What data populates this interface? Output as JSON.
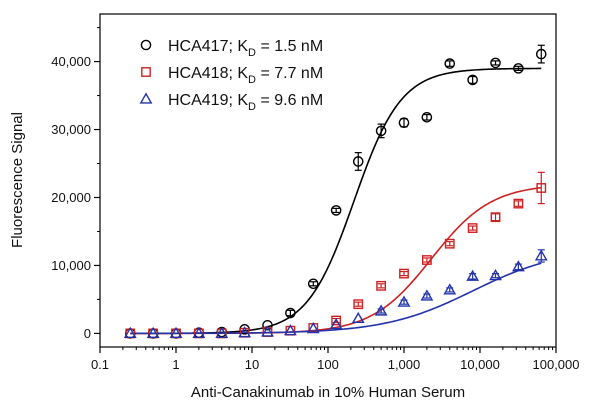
{
  "chart_data": {
    "type": "scatter",
    "title": "",
    "xlabel": "Anti-Canakinumab in 10% Human Serum",
    "ylabel": "Fluorescence Signal",
    "x_scale": "log",
    "xlim": [
      0.1,
      100000
    ],
    "ylim": [
      -2000,
      47000
    ],
    "x_ticks": [
      0.1,
      1,
      10,
      100,
      1000,
      10000,
      100000
    ],
    "x_tick_labels": [
      "0.1",
      "1",
      "10",
      "100",
      "1,000",
      "10,000",
      "100,000"
    ],
    "y_ticks": [
      0,
      10000,
      20000,
      30000,
      40000
    ],
    "y_tick_labels": [
      "0",
      "10,000",
      "20,000",
      "30,000",
      "40,000"
    ],
    "grid": false,
    "legend_position": "top-left",
    "series": [
      {
        "legend_main": "HCA417; K",
        "legend_sub": "D",
        "legend_tail": " = 1.5 nM",
        "marker": "circle",
        "color": "#000000",
        "x": [
          0.25,
          0.5,
          1,
          2,
          4,
          8,
          16,
          32,
          64,
          128,
          250,
          500,
          1000,
          2000,
          4000,
          8000,
          16000,
          32000,
          64000
        ],
        "y": [
          0,
          0,
          0,
          100,
          200,
          600,
          1200,
          3000,
          7300,
          18100,
          25300,
          29800,
          31000,
          31800,
          39700,
          37300,
          39800,
          39000,
          41100
        ],
        "err": [
          0,
          0,
          0,
          0,
          0,
          0,
          0,
          400,
          300,
          300,
          1300,
          1000,
          600,
          400,
          400,
          500,
          300,
          300,
          1300
        ],
        "fit": {
          "top": 39000,
          "ec50": 220,
          "hill": 1.4
        }
      },
      {
        "legend_main": "HCA418; K",
        "legend_sub": "D",
        "legend_tail": " = 7.7 nM",
        "marker": "square",
        "color": "#cc2222",
        "x": [
          0.25,
          0.5,
          1,
          2,
          4,
          8,
          16,
          32,
          64,
          128,
          250,
          500,
          1000,
          2000,
          4000,
          8000,
          16000,
          32000,
          64000
        ],
        "y": [
          0,
          0,
          0,
          0,
          0,
          100,
          200,
          400,
          800,
          1900,
          4300,
          7000,
          8800,
          10800,
          13200,
          15500,
          17100,
          19100,
          21400
        ],
        "err": [
          0,
          0,
          0,
          0,
          0,
          0,
          0,
          0,
          0,
          300,
          300,
          300,
          300,
          300,
          300,
          300,
          500,
          400,
          2300
        ],
        "fit": {
          "top": 22000,
          "ec50": 2300,
          "hill": 1.1
        }
      },
      {
        "legend_main": "HCA419; K",
        "legend_sub": "D",
        "legend_tail": " = 9.6 nM",
        "marker": "triangle",
        "color": "#2233aa",
        "x": [
          0.25,
          0.5,
          1,
          2,
          4,
          8,
          16,
          32,
          64,
          128,
          250,
          500,
          1000,
          2000,
          4000,
          8000,
          16000,
          32000,
          64000
        ],
        "y": [
          0,
          0,
          0,
          0,
          0,
          100,
          200,
          400,
          700,
          1300,
          2200,
          3300,
          4600,
          5500,
          6400,
          8400,
          8500,
          9800,
          11400
        ],
        "err": [
          0,
          0,
          0,
          0,
          0,
          0,
          0,
          0,
          0,
          0,
          0,
          300,
          300,
          300,
          300,
          400,
          300,
          400,
          900
        ],
        "fit": {
          "top": 12500,
          "ec50": 8000,
          "hill": 0.75
        }
      }
    ]
  }
}
